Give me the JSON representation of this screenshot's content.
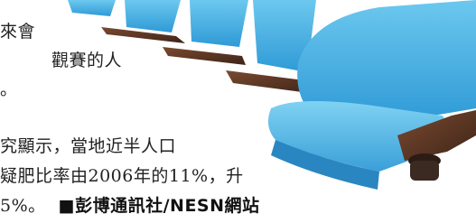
{
  "article": {
    "lines": [
      "來會",
      "觀賽的人",
      "。",
      "究顯示，當地近半人口",
      "疑肥比率由2006年的11%，升",
      "5%。"
    ],
    "credit": "■彭博通訊社/NESN網站"
  }
}
